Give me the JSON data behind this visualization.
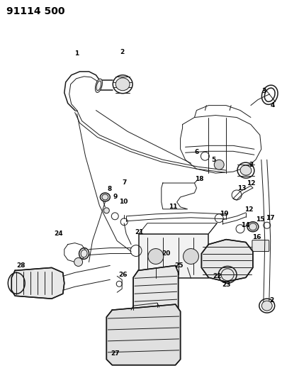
{
  "title": "91114 500",
  "bg_color": "#ffffff",
  "line_color": "#1a1a1a",
  "fig_width": 3.98,
  "fig_height": 5.33,
  "dpi": 100,
  "title_fontsize": 10,
  "title_fontweight": "bold"
}
